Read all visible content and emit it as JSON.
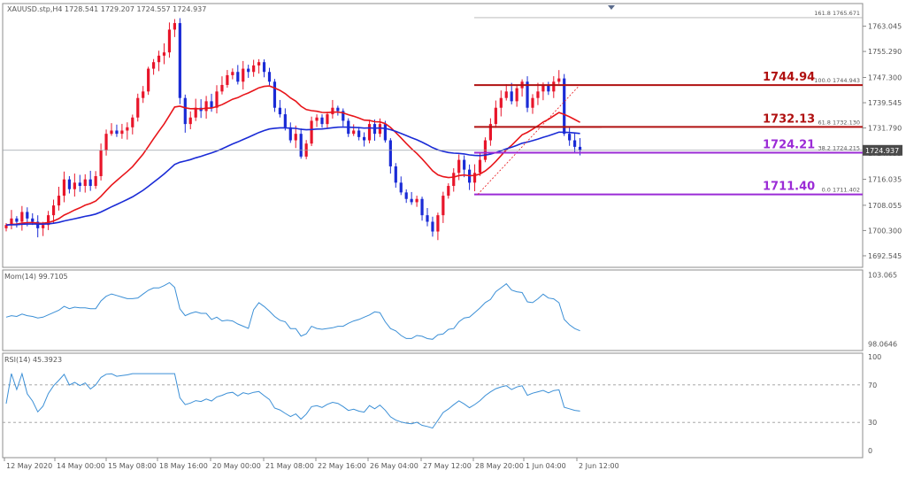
{
  "window": {
    "symbol_header": "XAUUSD.stp,H4  1728.541 1729.207 1724.557 1724.937"
  },
  "colors": {
    "frame": "#8c8c8c",
    "bull": "#e8152a",
    "bear": "#1a2bd6",
    "ema_fast": "#e8151a",
    "ema_slow": "#1a2bd6",
    "indicator": "#3b8fd6",
    "fib_red": "#b01010",
    "fib_purple": "#9b2bd6",
    "text": "#555555"
  },
  "chart_data": [
    {
      "type": "candlestick",
      "symbol": "XAUUSD.stp",
      "timeframe": "H4",
      "ohlc_header": {
        "open": 1728.541,
        "high": 1729.207,
        "low": 1724.557,
        "close": 1724.937
      },
      "ylim": [
        1689,
        1770
      ],
      "y_ticks": [
        "1763.045",
        "1755.290",
        "1747.300",
        "1739.545",
        "1731.790",
        "1724.035",
        "1716.035",
        "1708.055",
        "1700.300",
        "1692.545"
      ],
      "current_price": "1724.937",
      "x_ticks": [
        "12 May 2020",
        "14 May 00:00",
        "15 May 08:00",
        "18 May 16:00",
        "20 May 00:00",
        "21 May 08:00",
        "22 May 16:00",
        "26 May 04:00",
        "27 May 12:00",
        "28 May 20:00",
        "1 Jun 04:00",
        "2 Jun 12:00"
      ],
      "closes": [
        1702,
        1704,
        1703,
        1706,
        1704,
        1703,
        1701,
        1702,
        1705,
        1708,
        1711,
        1716,
        1713,
        1715,
        1714,
        1716,
        1714,
        1717,
        1725,
        1730,
        1731,
        1730,
        1731,
        1732,
        1735,
        1741,
        1743,
        1750,
        1752,
        1754,
        1755,
        1762,
        1764,
        1741,
        1733,
        1735,
        1738,
        1737,
        1740,
        1738,
        1743,
        1745,
        1748,
        1749,
        1746,
        1750,
        1749,
        1751,
        1752,
        1749,
        1746,
        1738,
        1736,
        1732,
        1728,
        1730,
        1723,
        1727,
        1734,
        1735,
        1733,
        1736,
        1738,
        1737,
        1734,
        1730,
        1731,
        1729,
        1728,
        1733,
        1730,
        1733,
        1728,
        1720,
        1715,
        1712,
        1710,
        1709,
        1710,
        1705,
        1703,
        1700,
        1705,
        1711,
        1714,
        1718,
        1722,
        1719,
        1715,
        1718,
        1722,
        1728,
        1733,
        1738,
        1741,
        1743,
        1740,
        1744,
        1746,
        1738,
        1741,
        1743,
        1745,
        1743,
        1746,
        1747,
        1730,
        1728,
        1726,
        1725
      ],
      "moving_averages": [
        {
          "name": "",
          "period": 21,
          "color": "#e8151a"
        },
        {
          "name": "",
          "period": 60,
          "color": "#1a2bd6"
        }
      ],
      "fibonacci": {
        "levels": [
          {
            "ratio_label": "161.8",
            "price": "1765.671",
            "big_label": "",
            "color": "#8c8c8c"
          },
          {
            "ratio_label": "100.0",
            "price": "1744.943",
            "big_label": "1744.94",
            "color": "#b01010"
          },
          {
            "ratio_label": "61.8",
            "price": "1732.130",
            "big_label": "1732.13",
            "color": "#b01010"
          },
          {
            "ratio_label": "38.2",
            "price": "1724.215",
            "big_label": "1724.21",
            "color": "#9b2bd6"
          },
          {
            "ratio_label": "0.0",
            "price": "1711.402",
            "big_label": "1711.40",
            "color": "#9b2bd6"
          }
        ]
      }
    },
    {
      "type": "line",
      "title": "Mom(14) 99.7105",
      "y_ticks": [
        "103.065",
        "98.0646"
      ],
      "ylim": [
        97.6,
        103.4
      ]
    },
    {
      "type": "line",
      "title": "RSI(14) 45.3923",
      "y_ticks": [
        "100",
        "70",
        "30",
        "0"
      ],
      "ylim": [
        0,
        100
      ],
      "levels": [
        70,
        30
      ]
    }
  ]
}
